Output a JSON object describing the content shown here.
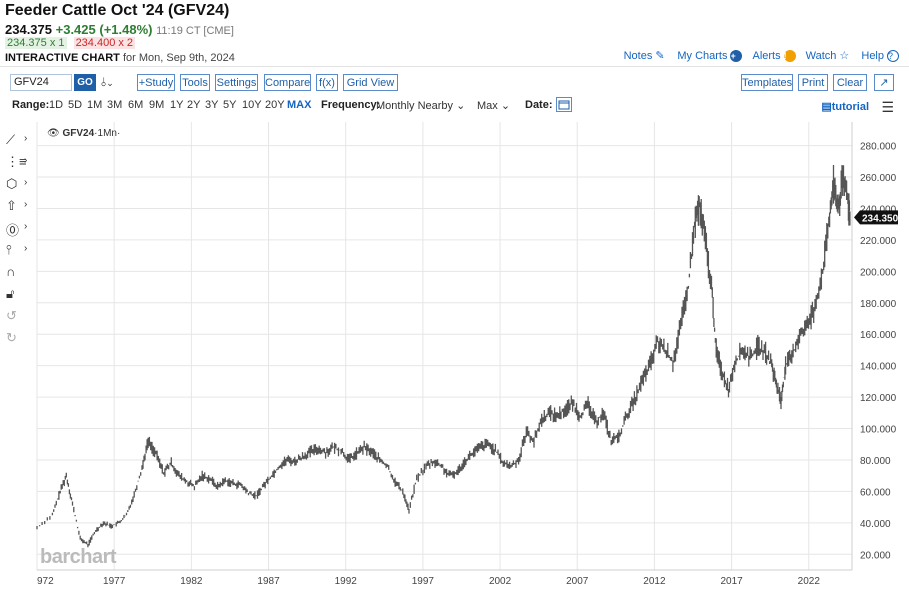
{
  "header": {
    "title": "Feeder Cattle Oct '24 (GFV24)",
    "last": "234.375",
    "change": "+3.425 (+1.48%)",
    "time": "11:19 CT [CME]",
    "bid": "234.375 x 1",
    "ask": "234.400 x 2",
    "interactive_label": "INTERACTIVE CHART",
    "date_text": "for Mon, Sep 9th, 2024"
  },
  "top_links": {
    "notes": "Notes",
    "mycharts": "My Charts",
    "alerts": "Alerts",
    "watch": "Watch",
    "help": "Help"
  },
  "toolbar": {
    "symbol_value": "GFV24",
    "go_label": "GO",
    "study_label": "+Study",
    "tools_label": "Tools",
    "settings_label": "Settings",
    "compare_label": "Compare",
    "fx_label": "f(x)",
    "gridview_label": "Grid View",
    "templates_label": "Templates",
    "print_label": "Print",
    "clear_label": "Clear",
    "expand_label": "↗"
  },
  "rangebar": {
    "range_label": "Range:",
    "ranges": [
      "1D",
      "5D",
      "1M",
      "3M",
      "6M",
      "9M",
      "1Y",
      "2Y",
      "3Y",
      "5Y",
      "10Y",
      "20Y",
      "MAX"
    ],
    "active_range": "MAX",
    "frequency_label": "Frequency:",
    "frequency_value": "Monthly Nearby",
    "period_value": "Max",
    "date_label": "Date:",
    "tutorial_label": "tutorial"
  },
  "chart_legend": {
    "symbol": "GFV24",
    "interval": "·1Mn·"
  },
  "watermark": "barchart",
  "colors": {
    "accent": "#1e5fa8",
    "up": "#2e7d32",
    "down": "#c62828",
    "series": "#555555"
  },
  "chart_data": {
    "type": "line",
    "title": "",
    "xlabel": "",
    "ylabel": "",
    "x_ticks": [
      "972",
      "1977",
      "1982",
      "1987",
      "1992",
      "1997",
      "2002",
      "2007",
      "2012",
      "2017",
      "2022"
    ],
    "y_ticks": [
      "20.000",
      "40.000",
      "60.000",
      "80.000",
      "100.000",
      "120.000",
      "140.000",
      "160.000",
      "180.000",
      "200.000",
      "220.000",
      "240.000",
      "260.000",
      "280.000"
    ],
    "xlim": [
      1972,
      2024.8
    ],
    "ylim": [
      10,
      295
    ],
    "last_price_label": "234.350",
    "last_price": 234.35,
    "series": [
      {
        "values": [
          [
            1972,
            37
          ],
          [
            1973,
            45
          ],
          [
            1973.5,
            60
          ],
          [
            1973.9,
            70
          ],
          [
            1974.3,
            52
          ],
          [
            1974.8,
            30
          ],
          [
            1975.3,
            26
          ],
          [
            1975.8,
            35
          ],
          [
            1976.3,
            40
          ],
          [
            1976.8,
            38
          ],
          [
            1977.3,
            40
          ],
          [
            1977.8,
            45
          ],
          [
            1978.3,
            58
          ],
          [
            1978.8,
            75
          ],
          [
            1979.2,
            92
          ],
          [
            1979.7,
            84
          ],
          [
            1980.2,
            72
          ],
          [
            1980.7,
            78
          ],
          [
            1981.2,
            70
          ],
          [
            1981.7,
            66
          ],
          [
            1982.2,
            63
          ],
          [
            1982.7,
            70
          ],
          [
            1983.2,
            68
          ],
          [
            1983.7,
            63
          ],
          [
            1984.2,
            67
          ],
          [
            1984.7,
            65
          ],
          [
            1985.2,
            64
          ],
          [
            1985.7,
            59
          ],
          [
            1986.2,
            57
          ],
          [
            1986.7,
            64
          ],
          [
            1987.2,
            70
          ],
          [
            1987.7,
            76
          ],
          [
            1988.2,
            80
          ],
          [
            1988.7,
            79
          ],
          [
            1989.2,
            82
          ],
          [
            1989.7,
            85
          ],
          [
            1990.2,
            87
          ],
          [
            1990.7,
            85
          ],
          [
            1991.2,
            88
          ],
          [
            1991.7,
            86
          ],
          [
            1992.2,
            80
          ],
          [
            1992.7,
            84
          ],
          [
            1993.2,
            88
          ],
          [
            1993.7,
            85
          ],
          [
            1994.2,
            80
          ],
          [
            1994.7,
            76
          ],
          [
            1995.2,
            66
          ],
          [
            1995.7,
            60
          ],
          [
            1996.1,
            48
          ],
          [
            1996.6,
            68
          ],
          [
            1997.2,
            76
          ],
          [
            1997.7,
            79
          ],
          [
            1998.2,
            76
          ],
          [
            1998.7,
            70
          ],
          [
            1999.2,
            72
          ],
          [
            1999.7,
            79
          ],
          [
            2000.2,
            84
          ],
          [
            2000.7,
            88
          ],
          [
            2001.2,
            90
          ],
          [
            2001.7,
            86
          ],
          [
            2002.2,
            78
          ],
          [
            2002.7,
            76
          ],
          [
            2003.2,
            80
          ],
          [
            2003.7,
            98
          ],
          [
            2004.2,
            92
          ],
          [
            2004.7,
            106
          ],
          [
            2005.2,
            110
          ],
          [
            2005.7,
            108
          ],
          [
            2006.2,
            112
          ],
          [
            2006.7,
            116
          ],
          [
            2007.2,
            108
          ],
          [
            2007.7,
            115
          ],
          [
            2008.2,
            104
          ],
          [
            2008.7,
            110
          ],
          [
            2009.2,
            92
          ],
          [
            2009.7,
            95
          ],
          [
            2010.2,
            108
          ],
          [
            2010.7,
            118
          ],
          [
            2011.2,
            130
          ],
          [
            2011.7,
            140
          ],
          [
            2012.2,
            155
          ],
          [
            2012.7,
            150
          ],
          [
            2013.2,
            142
          ],
          [
            2013.7,
            165
          ],
          [
            2014.2,
            190
          ],
          [
            2014.6,
            230
          ],
          [
            2014.9,
            242
          ],
          [
            2015.3,
            220
          ],
          [
            2015.7,
            190
          ],
          [
            2016.0,
            150
          ],
          [
            2016.4,
            135
          ],
          [
            2016.8,
            125
          ],
          [
            2017.2,
            142
          ],
          [
            2017.7,
            150
          ],
          [
            2018.2,
            145
          ],
          [
            2018.7,
            152
          ],
          [
            2019.2,
            148
          ],
          [
            2019.6,
            140
          ],
          [
            2019.9,
            128
          ],
          [
            2020.2,
            118
          ],
          [
            2020.5,
            140
          ],
          [
            2020.9,
            145
          ],
          [
            2021.4,
            160
          ],
          [
            2021.9,
            165
          ],
          [
            2022.4,
            178
          ],
          [
            2022.9,
            200
          ],
          [
            2023.3,
            230
          ],
          [
            2023.6,
            255
          ],
          [
            2023.9,
            240
          ],
          [
            2024.2,
            258
          ],
          [
            2024.5,
            248
          ],
          [
            2024.7,
            234
          ]
        ]
      }
    ],
    "grid": true,
    "legend": "top-left"
  }
}
